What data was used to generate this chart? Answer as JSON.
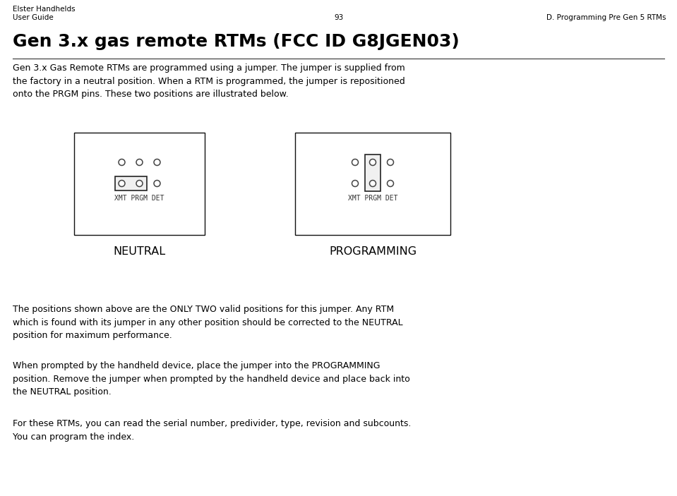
{
  "header_left_line1": "Elster Handhelds",
  "header_left_line2": "User Guide",
  "header_center": "93",
  "header_right": "D. Programming Pre Gen 5 RTMs",
  "title": "Gen 3.x gas remote RTMs (FCC ID G8JGEN03)",
  "paragraph1": "Gen 3.x Gas Remote RTMs are programmed using a jumper. The jumper is supplied from\nthe factory in a neutral position. When a RTM is programmed, the jumper is repositioned\nonto the PRGM pins. These two positions are illustrated below.",
  "label_neutral": "NEUTRAL",
  "label_programming": "PROGRAMMING",
  "label_xmt_prgm_det": "XMT PRGM DET",
  "paragraph2": "The positions shown above are the ONLY TWO valid positions for this jumper. Any RTM\nwhich is found with its jumper in any other position should be corrected to the NEUTRAL\nposition for maximum performance.",
  "paragraph3": "When prompted by the handheld device, place the jumper into the PROGRAMMING\nposition. Remove the jumper when prompted by the handheld device and place back into\nthe NEUTRAL position.",
  "paragraph4": "For these RTMs, you can read the serial number, predivider, type, revision and subcounts.\nYou can program the index.",
  "bg_color": "#ffffff",
  "text_color": "#000000",
  "pin_color": "#555555",
  "jumper_edge": "#222222",
  "jumper_face": "#f0f0f0",
  "header_fontsize": 7.5,
  "title_fontsize": 18,
  "body_fontsize": 9.0,
  "pin_label_fontsize": 7.0,
  "caption_fontsize": 11.5
}
